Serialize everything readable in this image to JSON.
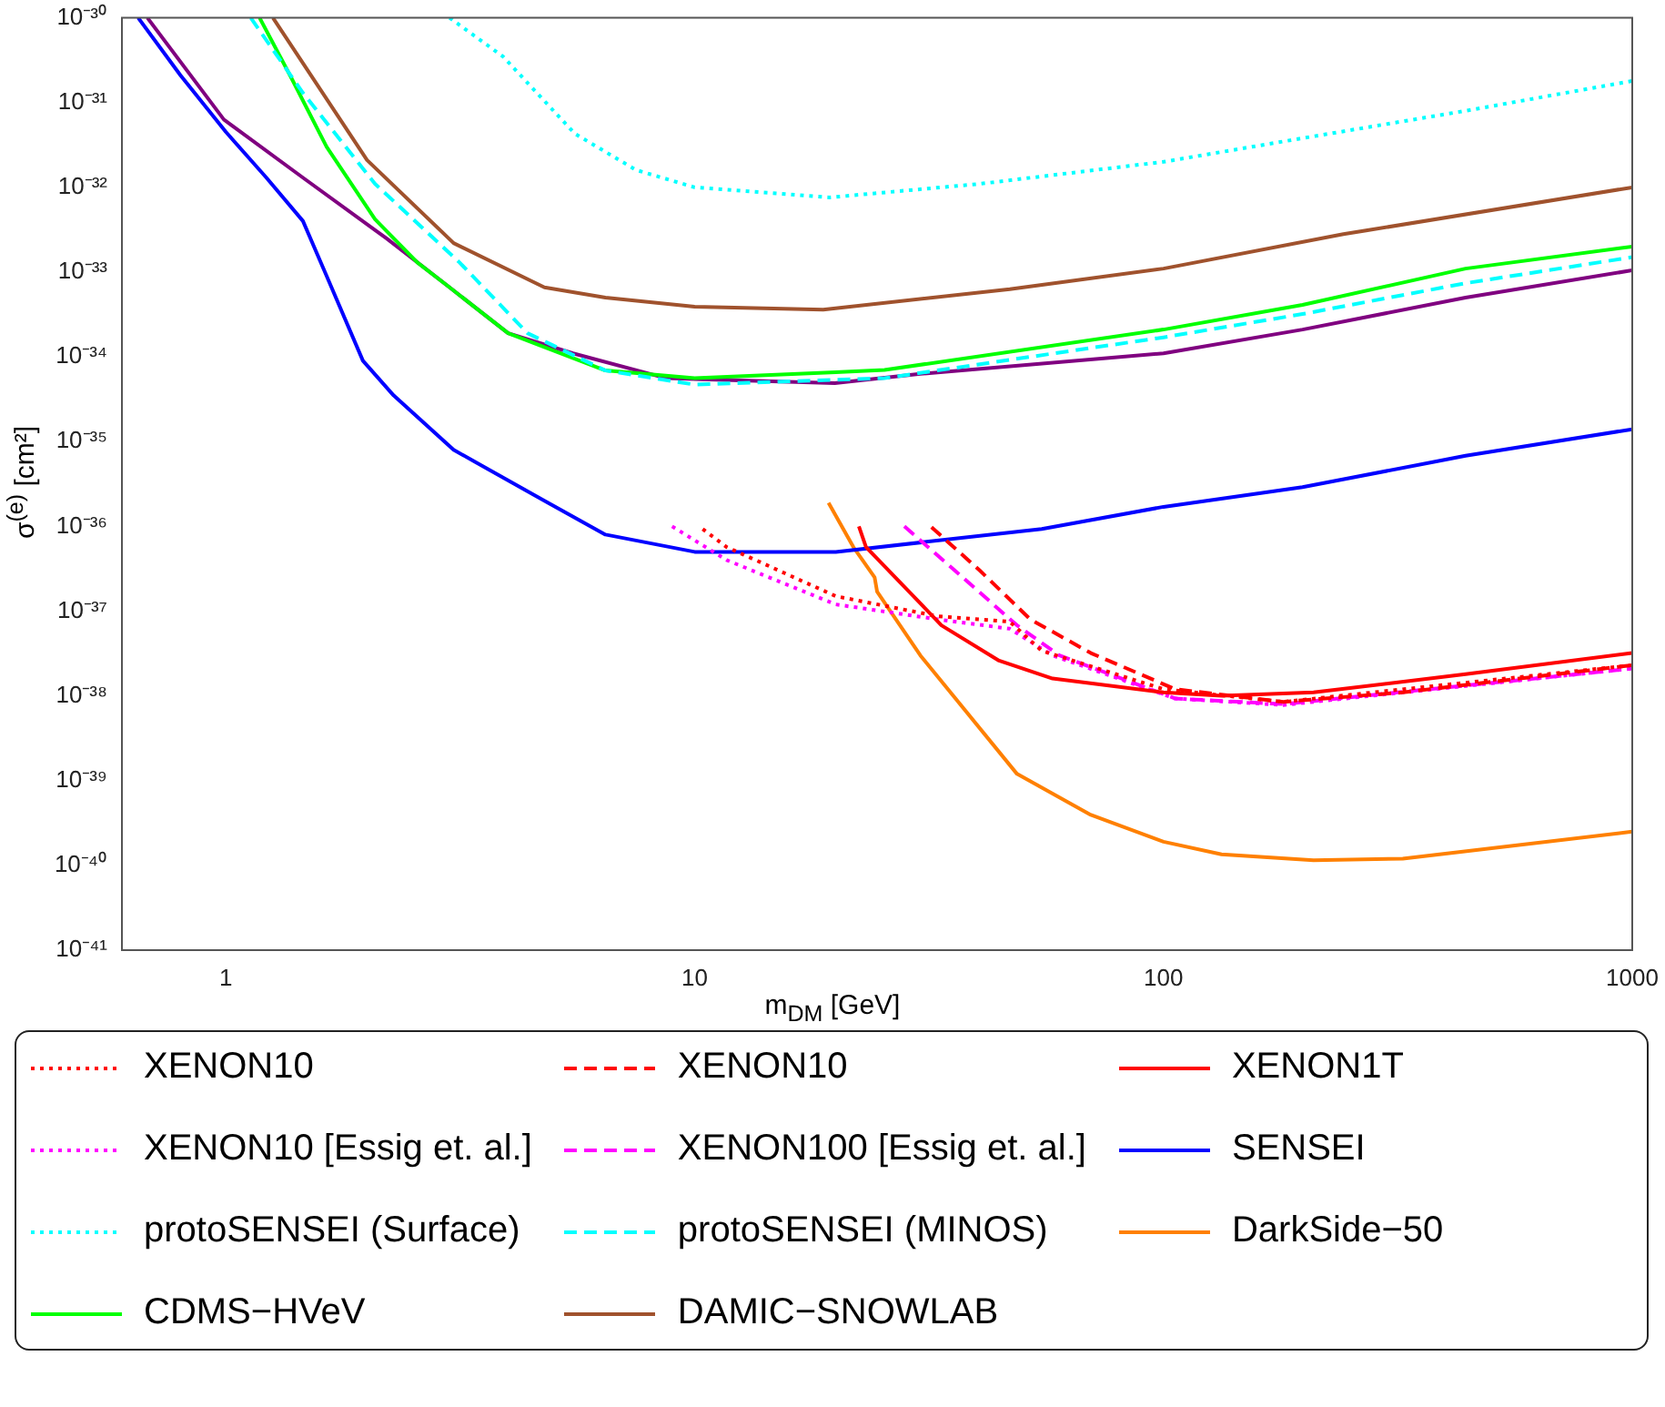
{
  "chart_data": {
    "type": "line",
    "xlabel": "m$_{DM}$ [GeV]",
    "ylabel": "σ$^{(e)}$ [cm²]",
    "log": "xy",
    "grid": false,
    "legend": "bottom",
    "xlim": [
      0.6,
      1000
    ],
    "xticks": [
      1,
      10,
      100,
      1000
    ],
    "ylim": [
      1e-41,
      1e-30
    ],
    "yticks": [
      {
        "value": 1e-41,
        "label": "10⁻⁴¹"
      },
      {
        "value": 1e-40,
        "label": "10⁻⁴⁰"
      },
      {
        "value": 1e-39,
        "label": "10⁻³⁹"
      },
      {
        "value": 1e-38,
        "label": "10⁻³⁸"
      },
      {
        "value": 1e-37,
        "label": "10⁻³⁷"
      },
      {
        "value": 1e-36,
        "label": "10⁻³⁶"
      },
      {
        "value": 1e-35,
        "label": "10⁻³⁵"
      },
      {
        "value": 1e-34,
        "label": "10⁻³⁴"
      },
      {
        "value": 1e-33,
        "label": "10⁻³³"
      },
      {
        "value": 1e-32,
        "label": "10⁻³²"
      },
      {
        "value": 1e-31,
        "label": "10⁻³¹"
      },
      {
        "value": 1e-30,
        "label": "10⁻³⁰"
      }
    ],
    "series": [
      {
        "name": "XENON10",
        "color": "#ff0000",
        "line_style": "dotted",
        "x": [
          10.4,
          11.7,
          20,
          33,
          47,
          55,
          100,
          180,
          1000
        ],
        "values": [
          9.3e-37,
          5.7e-37,
          1.5e-37,
          8.7e-38,
          7.5e-38,
          3.4e-38,
          1.2e-38,
          8.5e-39,
          2.3e-38
        ]
      },
      {
        "name": "XENON10",
        "color": "#ff0000",
        "line_style": "dashed",
        "x": [
          32,
          40.6,
          52,
          70,
          106,
          180,
          324,
          1000
        ],
        "values": [
          9.8e-37,
          3e-37,
          8e-38,
          3.2e-38,
          1.2e-38,
          8.5e-39,
          1.1e-38,
          2.3e-38
        ]
      },
      {
        "name": "XENON1T",
        "color": "#ff0000",
        "line_style": "solid",
        "x": [
          22.4,
          23.2,
          33.6,
          44.6,
          58,
          100,
          133,
          209,
          441,
          1000
        ],
        "values": [
          1e-36,
          5.7e-37,
          6.8e-38,
          2.6e-38,
          1.6e-38,
          1.1e-38,
          1e-38,
          1.1e-38,
          1.8e-38,
          3.2e-38
        ]
      },
      {
        "name": "XENON10 [Essig et. al.]",
        "color": "#ff00ff",
        "line_style": "dotted",
        "x": [
          8.95,
          11.7,
          20,
          33,
          47,
          58,
          106,
          180,
          1000
        ],
        "values": [
          1e-36,
          4e-37,
          1.2e-37,
          8e-38,
          6.2e-38,
          3e-38,
          9.3e-39,
          7.8e-39,
          2.1e-38
        ]
      },
      {
        "name": "XENON100 [Essig et. al.]",
        "color": "#ff00ff",
        "line_style": "dashed",
        "x": [
          28,
          37.3,
          48.7,
          60,
          106,
          180,
          1000
        ],
        "values": [
          1e-36,
          2.5e-37,
          6.8e-38,
          3e-38,
          9.3e-39,
          8e-39,
          2.1e-38
        ]
      },
      {
        "name": "SENSEI",
        "color": "#0000ff",
        "line_style": "solid",
        "x": [
          0.65,
          0.8,
          1,
          1.22,
          1.46,
          1.64,
          1.96,
          2.28,
          3.06,
          4.78,
          6.45,
          10,
          16.7,
          20,
          55,
          100,
          198,
          441,
          1000
        ],
        "values": [
          1e-30,
          2.1e-31,
          4.5e-32,
          1.3e-32,
          4e-33,
          9e-34,
          9e-35,
          3.5e-35,
          8e-36,
          2e-36,
          8e-37,
          5e-37,
          5e-37,
          5e-37,
          9.3e-37,
          1.7e-36,
          2.9e-36,
          6.8e-36,
          1.4e-35
        ]
      },
      {
        "name": "protoSENSEI (Surface)",
        "color": "#00ffff",
        "line_style": "dotted",
        "x": [
          3,
          3.9,
          5.55,
          7.5,
          10,
          19.4,
          40.6,
          100,
          198,
          441,
          1000
        ],
        "values": [
          1e-30,
          3.5e-31,
          4.3e-32,
          1.6e-32,
          1e-32,
          7.6e-33,
          1.1e-32,
          2e-32,
          3.8e-32,
          8e-32,
          1.8e-31
        ]
      },
      {
        "name": "protoSENSEI (MINOS)",
        "color": "#00ffff",
        "line_style": "dashed",
        "x": [
          1.13,
          1.46,
          2.08,
          3.15,
          4.4,
          6.45,
          10,
          25.4,
          100,
          198,
          441,
          1000
        ],
        "values": [
          1e-30,
          1.3e-31,
          1.1e-32,
          1.3e-33,
          1.9e-34,
          6.9e-35,
          4.7e-35,
          5.6e-35,
          1.7e-34,
          3.2e-34,
          7.4e-34,
          1.5e-33
        ]
      },
      {
        "name": "DarkSide−50",
        "color": "#ff8000",
        "line_style": "solid",
        "x": [
          19.3,
          21.8,
          24.2,
          24.5,
          30.3,
          48.7,
          69.6,
          100,
          133,
          209,
          324,
          1000
        ],
        "values": [
          1.9e-36,
          5.7e-37,
          2.5e-37,
          1.7e-37,
          3e-38,
          1.2e-39,
          4e-40,
          1.9e-40,
          1.35e-40,
          1.15e-40,
          1.2e-40,
          2.5e-40
        ]
      },
      {
        "name": "CDMS−HVeV",
        "color": "#00ff00",
        "line_style": "solid",
        "x": [
          1.18,
          1.37,
          1.64,
          2.08,
          2.56,
          3,
          4,
          6.45,
          10,
          20,
          25.4,
          100,
          198,
          441,
          1000
        ],
        "values": [
          1e-30,
          2.1e-31,
          3e-32,
          4.2e-33,
          1.3e-33,
          6.6e-34,
          1.9e-34,
          6.9e-35,
          5.6e-35,
          6.6e-35,
          7e-35,
          2.1e-34,
          4.1e-34,
          1.1e-33,
          2e-33
        ]
      },
      {
        "name": "DAMIC−SNOWLAB",
        "color": "#a0522d",
        "line_style": "solid",
        "x": [
          1.26,
          2,
          3.06,
          4.78,
          6.45,
          10,
          18.8,
          47,
          100,
          242,
          1000
        ],
        "values": [
          1e-30,
          2.1e-32,
          2.2e-33,
          6.6e-34,
          5e-34,
          3.9e-34,
          3.6e-34,
          6.3e-34,
          1.1e-33,
          2.8e-33,
          1e-32
        ]
      },
      {
        "color": "#800080",
        "line_style": "solid",
        "x": [
          0.68,
          0.99,
          1.46,
          2.2,
          3,
          4,
          5.5,
          8.7,
          19.9,
          30.3,
          100,
          198,
          441,
          1000
        ],
        "values": [
          1e-30,
          6.3e-32,
          1.3e-32,
          2.5e-33,
          6.6e-34,
          1.9e-34,
          1.1e-34,
          5.6e-35,
          4.9e-35,
          6.3e-35,
          1.1e-34,
          2.1e-34,
          5e-34,
          1.05e-33
        ]
      }
    ]
  }
}
